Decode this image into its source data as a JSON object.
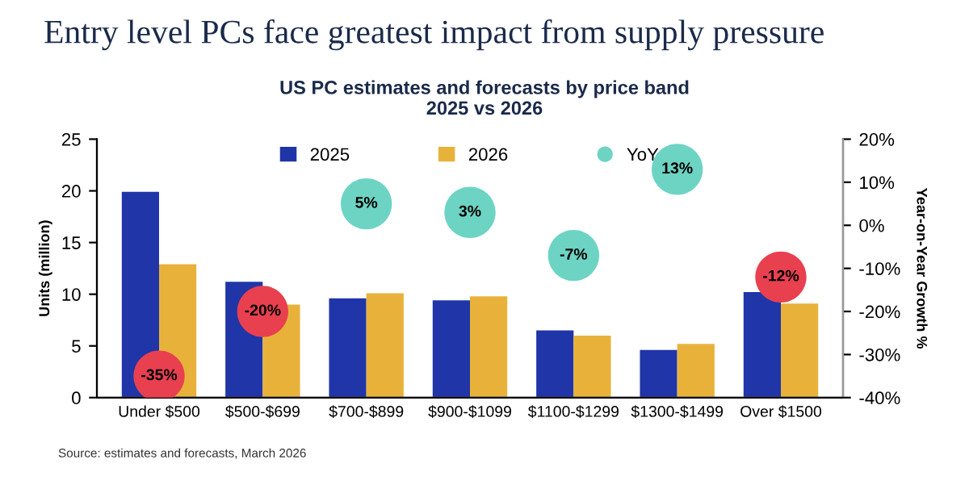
{
  "chart_data": {
    "type": "bar",
    "title": "Entry level PCs face greatest impact from supply pressure",
    "subtitle": "US PC estimates and forecasts by price band\n2025 vs 2026",
    "ylabel": "Units (million)",
    "y2label": "Year-on-Year Growth %",
    "categories": [
      "Under $500",
      "$500-$699",
      "$700-$899",
      "$900-$1099",
      "$1100-$1299",
      "$1300-$1499",
      "Over $1500"
    ],
    "series": [
      {
        "name": "2025",
        "color": "#1f35a8",
        "values": [
          19.9,
          11.2,
          9.6,
          9.4,
          6.5,
          4.6,
          10.2
        ]
      },
      {
        "name": "2026",
        "color": "#e8b23a",
        "values": [
          12.9,
          9.0,
          10.1,
          9.8,
          6.0,
          5.2,
          9.1
        ]
      },
      {
        "name": "YoY",
        "type": "scatter",
        "axis": "y2",
        "color": "#6dd4c4",
        "colors": [
          "#e8404f",
          "#e8404f",
          "#6dd4c4",
          "#6dd4c4",
          "#6dd4c4",
          "#6dd4c4",
          "#e8404f"
        ],
        "values": [
          -35,
          -20,
          5,
          3,
          -7,
          13,
          -12
        ],
        "value_labels": [
          "-35%",
          "-20%",
          "5%",
          "3%",
          "-7%",
          "13%",
          "-12%"
        ]
      }
    ],
    "ylim": [
      0,
      25
    ],
    "yticks": [
      0,
      5,
      10,
      15,
      20,
      25
    ],
    "y2lim": [
      -40,
      20
    ],
    "y2ticks": [
      {
        "value": -40,
        "label": "-40%"
      },
      {
        "value": -30,
        "label": "-30%"
      },
      {
        "value": -20,
        "label": "-20%"
      },
      {
        "value": -10,
        "label": "-10%"
      },
      {
        "value": 0,
        "label": "0%"
      },
      {
        "value": 10,
        "label": "10%"
      },
      {
        "value": 20,
        "label": "20%"
      }
    ],
    "legend": "top",
    "grid": false,
    "marker": "circle",
    "annotations": [
      "Source: estimates and forecasts, March 2026"
    ]
  }
}
